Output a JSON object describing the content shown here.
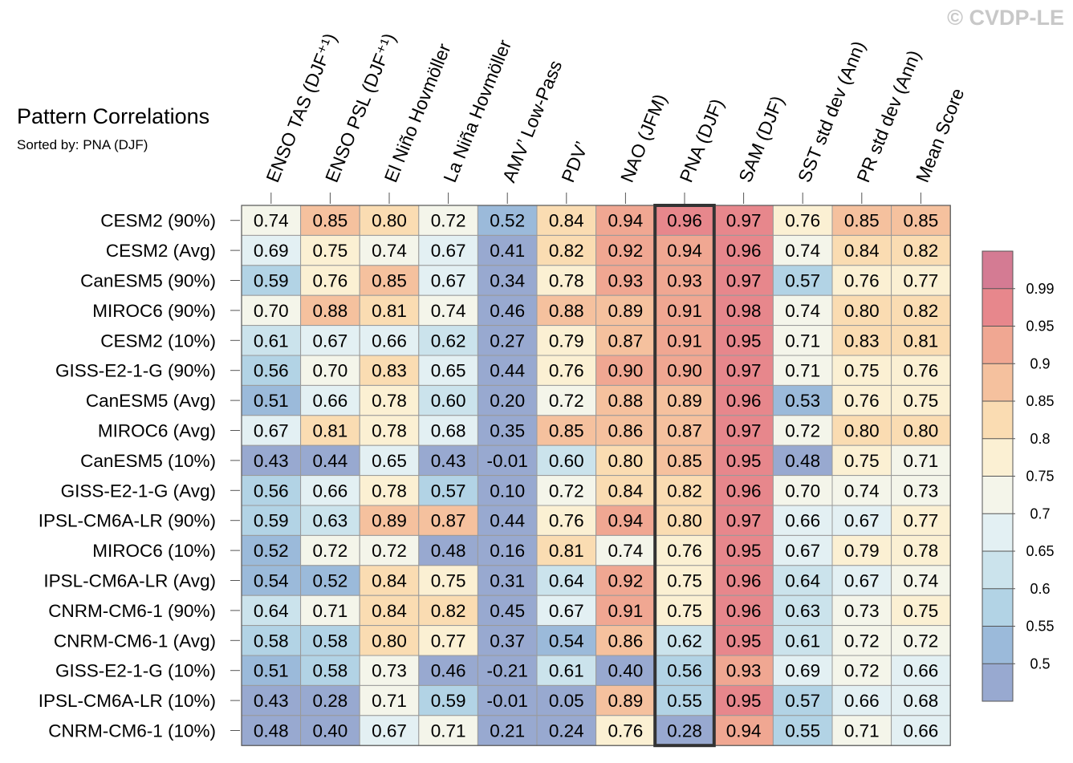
{
  "watermark": "© CVDP-LE",
  "chart_data": {
    "type": "heatmap",
    "title": "Pattern Correlations",
    "subtitle": "Sorted by: PNA (DJF)",
    "highlight_column": "PNA (DJF)",
    "columns": [
      "ENSO TAS (DJF⁺¹)",
      "ENSO PSL (DJF⁺¹)",
      "El Niño Hovmöller",
      "La Niña Hovmöller",
      "AMV’ Low-Pass",
      "PDV’",
      "NAO (JFM)",
      "PNA (DJF)",
      "SAM (DJF)",
      "SST std dev (Ann)",
      "PR std dev (Ann)",
      "Mean Score"
    ],
    "rows": [
      "CESM2 (90%)",
      "CESM2 (Avg)",
      "CanESM5 (90%)",
      "MIROC6 (90%)",
      "CESM2 (10%)",
      "GISS-E2-1-G (90%)",
      "CanESM5 (Avg)",
      "MIROC6 (Avg)",
      "CanESM5 (10%)",
      "GISS-E2-1-G (Avg)",
      "IPSL-CM6A-LR (90%)",
      "MIROC6 (10%)",
      "IPSL-CM6A-LR (Avg)",
      "CNRM-CM6-1 (90%)",
      "CNRM-CM6-1 (Avg)",
      "GISS-E2-1-G (10%)",
      "IPSL-CM6A-LR (10%)",
      "CNRM-CM6-1 (10%)"
    ],
    "values": [
      [
        "0.74",
        "0.85",
        "0.80",
        "0.72",
        "0.52",
        "0.84",
        "0.94",
        "0.96",
        "0.97",
        "0.76",
        "0.85",
        "0.85"
      ],
      [
        "0.69",
        "0.75",
        "0.74",
        "0.67",
        "0.41",
        "0.82",
        "0.92",
        "0.94",
        "0.96",
        "0.74",
        "0.84",
        "0.82"
      ],
      [
        "0.59",
        "0.76",
        "0.85",
        "0.67",
        "0.34",
        "0.78",
        "0.93",
        "0.93",
        "0.97",
        "0.57",
        "0.76",
        "0.77"
      ],
      [
        "0.70",
        "0.88",
        "0.81",
        "0.74",
        "0.46",
        "0.88",
        "0.89",
        "0.91",
        "0.98",
        "0.74",
        "0.80",
        "0.82"
      ],
      [
        "0.61",
        "0.67",
        "0.66",
        "0.62",
        "0.27",
        "0.79",
        "0.87",
        "0.91",
        "0.95",
        "0.71",
        "0.83",
        "0.81"
      ],
      [
        "0.56",
        "0.70",
        "0.83",
        "0.65",
        "0.44",
        "0.76",
        "0.90",
        "0.90",
        "0.97",
        "0.71",
        "0.75",
        "0.76"
      ],
      [
        "0.51",
        "0.66",
        "0.78",
        "0.60",
        "0.20",
        "0.72",
        "0.88",
        "0.89",
        "0.96",
        "0.53",
        "0.76",
        "0.75"
      ],
      [
        "0.67",
        "0.81",
        "0.78",
        "0.68",
        "0.35",
        "0.85",
        "0.86",
        "0.87",
        "0.97",
        "0.72",
        "0.80",
        "0.80"
      ],
      [
        "0.43",
        "0.44",
        "0.65",
        "0.43",
        "-0.01",
        "0.60",
        "0.80",
        "0.85",
        "0.95",
        "0.48",
        "0.75",
        "0.71"
      ],
      [
        "0.56",
        "0.66",
        "0.78",
        "0.57",
        "0.10",
        "0.72",
        "0.84",
        "0.82",
        "0.96",
        "0.70",
        "0.74",
        "0.73"
      ],
      [
        "0.59",
        "0.63",
        "0.89",
        "0.87",
        "0.44",
        "0.76",
        "0.94",
        "0.80",
        "0.97",
        "0.66",
        "0.67",
        "0.77"
      ],
      [
        "0.52",
        "0.72",
        "0.72",
        "0.48",
        "0.16",
        "0.81",
        "0.74",
        "0.76",
        "0.95",
        "0.67",
        "0.79",
        "0.78"
      ],
      [
        "0.54",
        "0.52",
        "0.84",
        "0.75",
        "0.31",
        "0.64",
        "0.92",
        "0.75",
        "0.96",
        "0.64",
        "0.67",
        "0.74"
      ],
      [
        "0.64",
        "0.71",
        "0.84",
        "0.82",
        "0.45",
        "0.67",
        "0.91",
        "0.75",
        "0.96",
        "0.63",
        "0.73",
        "0.75"
      ],
      [
        "0.58",
        "0.58",
        "0.80",
        "0.77",
        "0.37",
        "0.54",
        "0.86",
        "0.62",
        "0.95",
        "0.61",
        "0.72",
        "0.72"
      ],
      [
        "0.51",
        "0.58",
        "0.73",
        "0.46",
        "-0.21",
        "0.61",
        "0.40",
        "0.56",
        "0.93",
        "0.69",
        "0.72",
        "0.66"
      ],
      [
        "0.43",
        "0.28",
        "0.71",
        "0.59",
        "-0.01",
        "0.05",
        "0.89",
        "0.55",
        "0.95",
        "0.57",
        "0.66",
        "0.68"
      ],
      [
        "0.48",
        "0.40",
        "0.67",
        "0.71",
        "0.21",
        "0.24",
        "0.76",
        "0.28",
        "0.94",
        "0.55",
        "0.71",
        "0.66"
      ]
    ],
    "colorbar": {
      "labels": [
        "0.99",
        "0.95",
        "0.9",
        "0.85",
        "0.8",
        "0.75",
        "0.7",
        "0.65",
        "0.6",
        "0.55",
        "0.5"
      ],
      "colors": [
        "#d47b93",
        "#e7878c",
        "#f0a792",
        "#f5c19e",
        "#fadcb2",
        "#fbf0d3",
        "#f4f5ea",
        "#e3f0f3",
        "#cbe3ec",
        "#b2d3e5",
        "#9bbada",
        "#98a9d0"
      ]
    }
  }
}
